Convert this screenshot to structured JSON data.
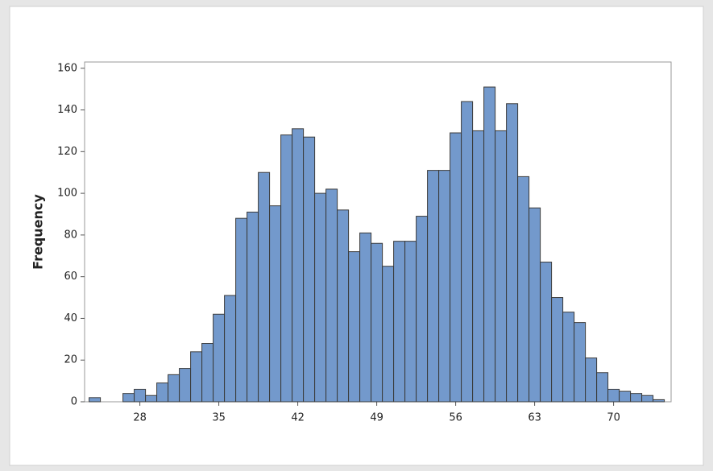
{
  "chart_data": {
    "type": "histogram",
    "y_label": "Frequency",
    "bins": [
      23.5,
      24.5,
      25.5,
      26.5,
      27.5,
      28.5,
      29.5,
      30.5,
      31.5,
      32.5,
      33.5,
      34.5,
      35.5,
      36.5,
      37.5,
      38.5,
      39.5,
      40.5,
      41.5,
      42.5,
      43.5,
      44.5,
      45.5,
      46.5,
      47.5,
      48.5,
      49.5,
      50.5,
      51.5,
      52.5,
      53.5,
      54.5,
      55.5,
      56.5,
      57.5,
      58.5,
      59.5,
      60.5,
      61.5,
      62.5,
      63.5,
      64.5,
      65.5,
      66.5,
      67.5,
      68.5,
      69.5,
      70.5,
      71.5,
      72.5,
      73.5,
      74.5
    ],
    "values": [
      2,
      0,
      0,
      4,
      6,
      3,
      9,
      13,
      16,
      24,
      28,
      42,
      51,
      88,
      91,
      110,
      94,
      128,
      131,
      127,
      100,
      102,
      92,
      72,
      81,
      76,
      65,
      77,
      77,
      89,
      111,
      111,
      129,
      144,
      130,
      151,
      130,
      143,
      108,
      93,
      67,
      50,
      43,
      38,
      21,
      14,
      6,
      5,
      4,
      3,
      1
    ],
    "color": "#7399cc",
    "xlim": [
      23.1,
      75.1
    ],
    "xticks": [
      28,
      35,
      42,
      49,
      56,
      63,
      70
    ],
    "ylim": [
      0,
      163
    ],
    "yticks": [
      0,
      20,
      40,
      60,
      80,
      100,
      120,
      140,
      160
    ]
  }
}
